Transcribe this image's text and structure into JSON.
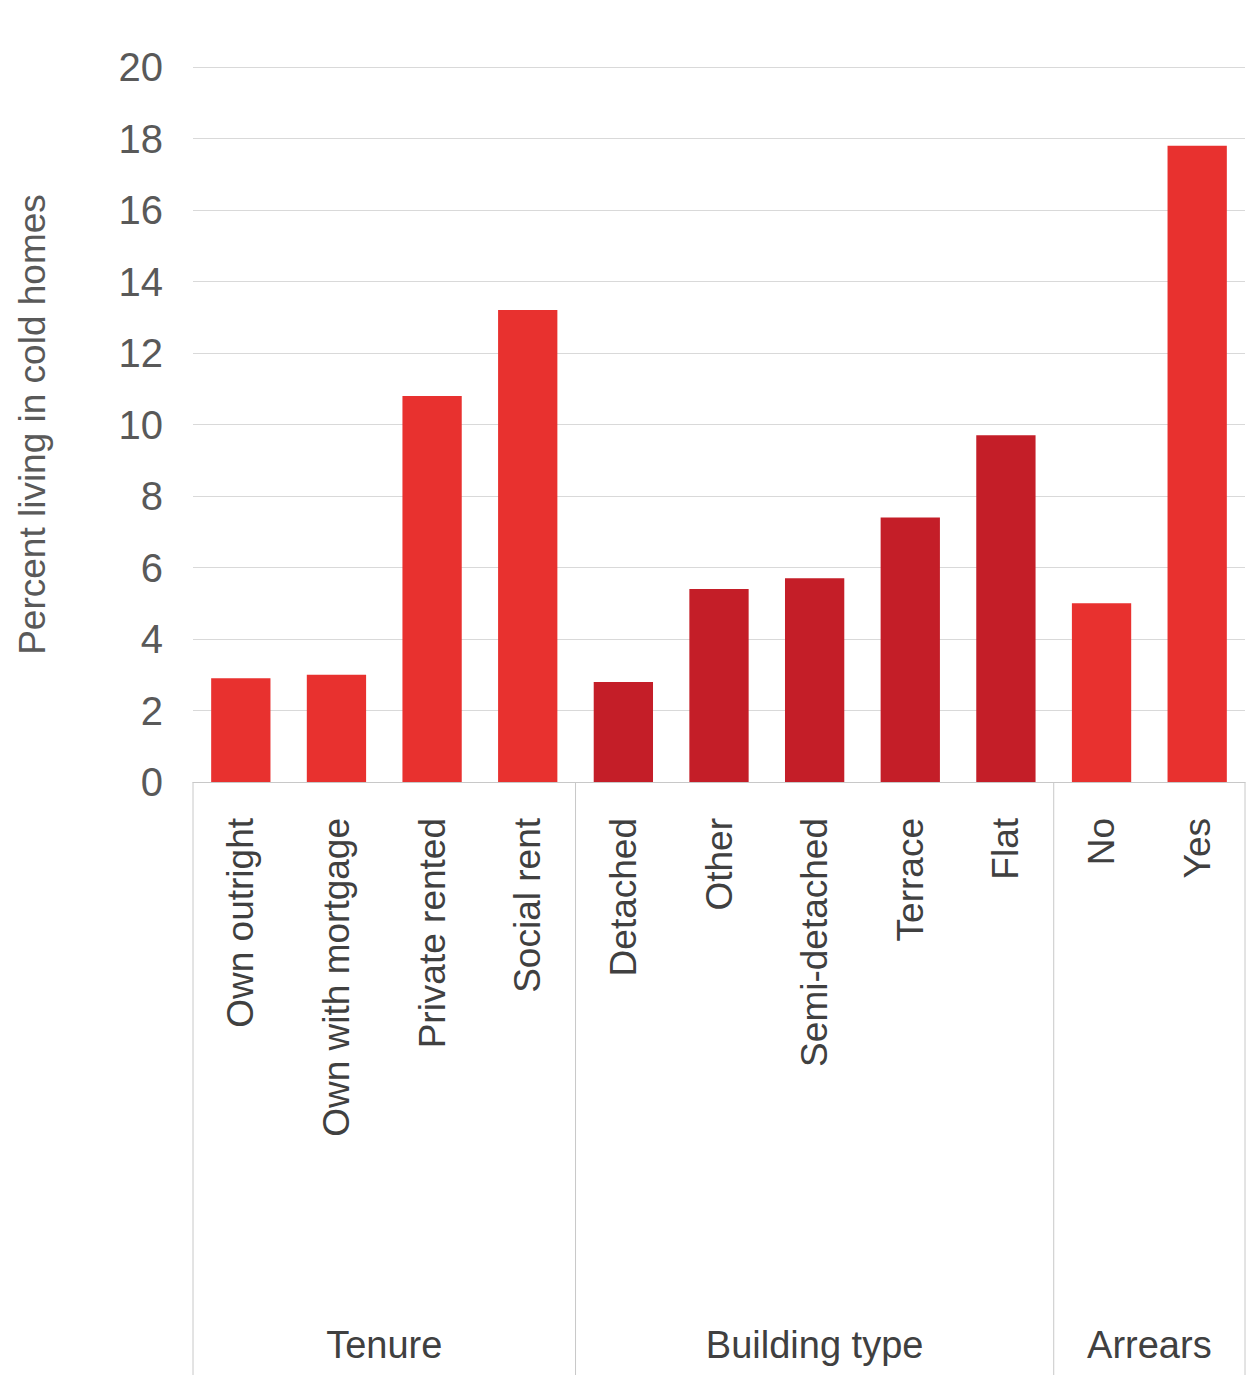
{
  "chart_data": {
    "type": "bar",
    "y_label": "Percent living in cold homes",
    "categories": [
      "Own outright",
      "Own with mortgage",
      "Private rented",
      "Social rent",
      "Detached",
      "Other",
      "Semi-detached",
      "Terrace",
      "Flat",
      "No",
      "Yes"
    ],
    "values": [
      2.9,
      3.0,
      10.8,
      13.2,
      2.8,
      5.4,
      5.7,
      7.4,
      9.7,
      5.0,
      17.8
    ],
    "colors": [
      "#e8312f",
      "#e8312f",
      "#e8312f",
      "#e8312f",
      "#c41e28",
      "#c41e28",
      "#c41e28",
      "#c41e28",
      "#c41e28",
      "#e8312f",
      "#e8312f"
    ],
    "groups": [
      {
        "label": "Tenure",
        "count": 4
      },
      {
        "label": "Building type",
        "count": 5
      },
      {
        "label": "Arrears",
        "count": 2
      }
    ],
    "ylim": [
      0,
      20
    ],
    "yticks": [
      0,
      2,
      4,
      6,
      8,
      10,
      12,
      14,
      16,
      18,
      20
    ],
    "grid": true
  }
}
